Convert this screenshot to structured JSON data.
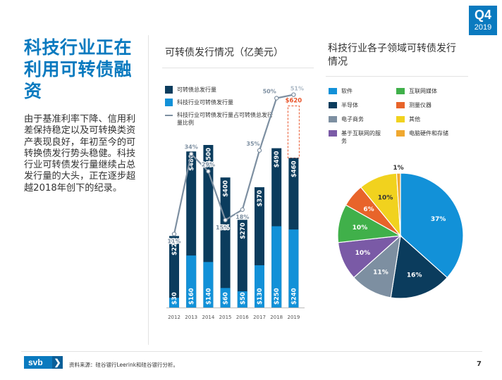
{
  "badge": {
    "quarter": "Q4",
    "year": "2019"
  },
  "headline": "科技行业正在利用可转债融资",
  "body": "由于基准利率下降、信用利差保持稳定以及可转换类资产表现良好，年初至今的可转换债发行势头稳健。科技行业可转债发行量继续占总发行量的大头，正在逐步超越2018年创下的纪录。",
  "colors": {
    "brand": "#0a7abf",
    "total": "#0b3c5d",
    "tech": "#1291d8",
    "line": "#7d8fa1",
    "projection": "#e8542a"
  },
  "chart1": {
    "title": "可转债发行情况（亿美元）"
  },
  "chart2": {
    "title": "科技行业各子领域可转债发行情况"
  },
  "chart_data": [
    {
      "type": "bar",
      "title": "可转债发行情况（亿美元）",
      "categories": [
        "2012",
        "2013",
        "2014",
        "2015",
        "2016",
        "2017",
        "2018",
        "2019"
      ],
      "series": [
        {
          "name": "可转债总发行量",
          "values": [
            220,
            480,
            500,
            400,
            270,
            370,
            490,
            460
          ],
          "labels": [
            "$220",
            "$480",
            "$500",
            "$400",
            "$270",
            "$370",
            "$490",
            "$460"
          ]
        },
        {
          "name": "科技行业可转债发行量",
          "values": [
            30,
            160,
            140,
            60,
            50,
            130,
            250,
            240
          ],
          "labels": [
            "$30",
            "$160",
            "$140",
            "$60",
            "$50",
            "$130",
            "$250",
            "$240"
          ]
        },
        {
          "name": "科技行业可转债发行量占可转债总发行量比例",
          "type": "line",
          "values": [
            11,
            34,
            29,
            15,
            18,
            35,
            50,
            51
          ],
          "labels": [
            "11%",
            "34%",
            "29%",
            "15%",
            "18%",
            "35%",
            "50%",
            "51%"
          ]
        }
      ],
      "projection": {
        "category": "2019",
        "value": 620,
        "label": "$620"
      },
      "ylim": [
        0,
        650
      ]
    },
    {
      "type": "pie",
      "title": "科技行业各子领域可转债发行情况",
      "labels": [
        "软件",
        "半导体",
        "电子商务",
        "基于互联网的服务",
        "互联网媒体",
        "测量仪器",
        "其他",
        "电脑硬件和存储"
      ],
      "values": [
        37,
        16,
        11,
        10,
        10,
        6,
        10,
        1
      ],
      "value_labels": [
        "37%",
        "16%",
        "11%",
        "10%",
        "10%",
        "6%",
        "10%",
        "1%"
      ],
      "colors": [
        "#1291d8",
        "#0b3c5d",
        "#7d8fa1",
        "#7a5aa6",
        "#40b04a",
        "#e8642a",
        "#f1d21e",
        "#f0a830"
      ]
    }
  ],
  "legend1": [
    {
      "label": "可转债总发行量",
      "kind": "box",
      "color": "#0b3c5d"
    },
    {
      "label": "科技行业可转债发行量",
      "kind": "box",
      "color": "#1291d8"
    },
    {
      "label": "科技行业可转债发行量占可转债总发行量比例",
      "kind": "dash",
      "color": "#7d8fa1"
    }
  ],
  "footer": {
    "logo": "svb",
    "logo_mark": "❯",
    "source": "资料来源：硅谷银行Leerink和硅谷银行分析。",
    "page": "7"
  }
}
